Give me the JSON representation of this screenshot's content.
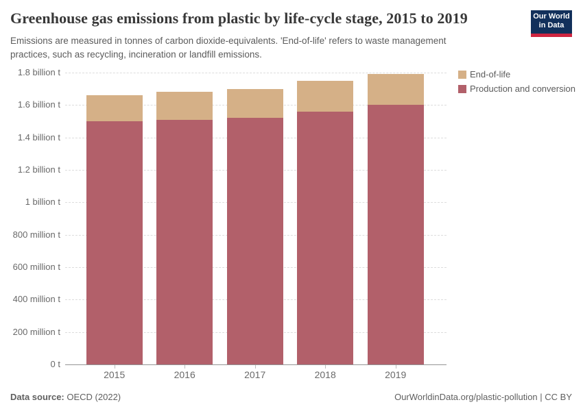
{
  "header": {
    "title": "Greenhouse gas emissions from plastic by life-cycle stage, 2015 to 2019",
    "subtitle_lines": [
      "Emissions are measured in tonnes of carbon dioxide-equivalents. 'End-of-life' refers to waste management",
      "practices, such as recycling, incineration or landfill emissions."
    ]
  },
  "logo": {
    "line1": "Our World",
    "line2": "in Data",
    "bg_color": "#12305B",
    "stripe_color": "#CF2540"
  },
  "legend": {
    "items": [
      {
        "label": "End-of-life",
        "color": "#D5B087"
      },
      {
        "label": "Production and conversion",
        "color": "#B2606A"
      }
    ]
  },
  "chart_data": {
    "type": "bar",
    "stacked": true,
    "title": "Greenhouse gas emissions from plastic by life-cycle stage, 2015 to 2019",
    "unit": "billion tonnes of CO2-equivalents",
    "categories": [
      "2015",
      "2016",
      "2017",
      "2018",
      "2019"
    ],
    "series": [
      {
        "name": "Production and conversion",
        "color": "#B2606A",
        "values": [
          1.5,
          1.51,
          1.52,
          1.56,
          1.6
        ]
      },
      {
        "name": "End-of-life",
        "color": "#D5B087",
        "values": [
          0.16,
          0.17,
          0.18,
          0.19,
          0.19
        ]
      }
    ],
    "totals": [
      1.66,
      1.68,
      1.7,
      1.75,
      1.79
    ],
    "xlabel": "",
    "ylabel": "",
    "ylim": [
      0,
      1.8
    ],
    "grid": "horizontal-dashed",
    "legend_position": "top-right",
    "yticks": [
      {
        "value": 0.0,
        "label": "0 t"
      },
      {
        "value": 0.2,
        "label": "200 million t"
      },
      {
        "value": 0.4,
        "label": "400 million t"
      },
      {
        "value": 0.6,
        "label": "600 million t"
      },
      {
        "value": 0.8,
        "label": "800 million t"
      },
      {
        "value": 1.0,
        "label": "1 billion t"
      },
      {
        "value": 1.2,
        "label": "1.2 billion t"
      },
      {
        "value": 1.4,
        "label": "1.4 billion t"
      },
      {
        "value": 1.6,
        "label": "1.6 billion t"
      },
      {
        "value": 1.8,
        "label": "1.8 billion t"
      }
    ]
  },
  "footer": {
    "source_label": "Data source:",
    "source": "OECD (2022)",
    "right_text": "OurWorldinData.org/plastic-pollution | CC BY"
  }
}
